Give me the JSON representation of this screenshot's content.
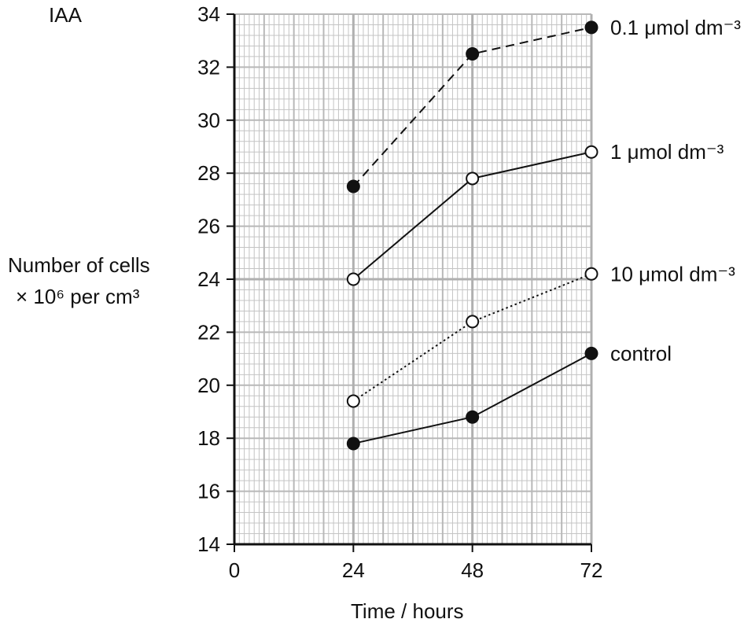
{
  "chart_data": {
    "type": "line",
    "corner_label": "IAA",
    "ylabel_line1": "Number of cells",
    "ylabel_line2": "× 10⁶ per cm³",
    "xlabel": "Time / hours",
    "xlim": [
      0,
      72
    ],
    "ylim": [
      14,
      34
    ],
    "x_ticks": [
      0,
      24,
      48,
      72
    ],
    "y_ticks": [
      14,
      16,
      18,
      20,
      22,
      24,
      26,
      28,
      30,
      32,
      34
    ],
    "grid": true,
    "series": [
      {
        "name": "0.1 μmol dm⁻³",
        "x": [
          24,
          48,
          72
        ],
        "y": [
          27.5,
          32.5,
          33.5
        ],
        "line_style": "dashed",
        "marker": "filled"
      },
      {
        "name": "1 μmol dm⁻³",
        "x": [
          24,
          48,
          72
        ],
        "y": [
          24.0,
          27.8,
          28.8
        ],
        "line_style": "solid",
        "marker": "open"
      },
      {
        "name": "10 μmol dm⁻³",
        "x": [
          24,
          48,
          72
        ],
        "y": [
          19.4,
          22.4,
          24.2
        ],
        "line_style": "dotted",
        "marker": "open"
      },
      {
        "name": "control",
        "x": [
          24,
          48,
          72
        ],
        "y": [
          17.8,
          18.8,
          21.2
        ],
        "line_style": "solid",
        "marker": "filled"
      }
    ]
  }
}
